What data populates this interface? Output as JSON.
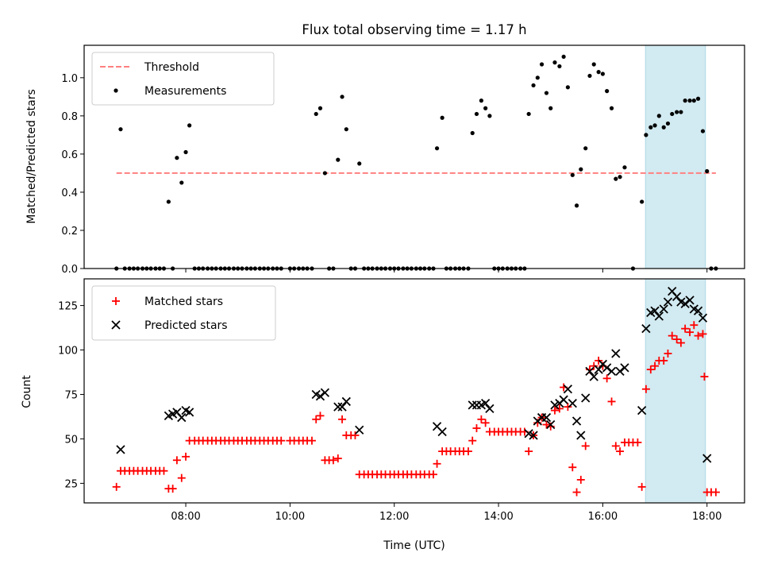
{
  "chart_data": {
    "title": "Flux total observing time = 1.17 h",
    "shade_span": [
      16.82,
      17.97
    ],
    "shade_color": "#add8e6",
    "xlim": [
      6.05,
      18.72
    ],
    "xlabel": "Time (UTC)",
    "xticks": [
      {
        "value": 8,
        "label": "08:00"
      },
      {
        "value": 10,
        "label": "10:00"
      },
      {
        "value": 12,
        "label": "12:00"
      },
      {
        "value": 14,
        "label": "14:00"
      },
      {
        "value": 16,
        "label": "16:00"
      },
      {
        "value": 18,
        "label": "18:00"
      }
    ],
    "top": {
      "type": "scatter",
      "ylabel": "Matched/Predicted stars",
      "ylim": [
        0,
        1.17
      ],
      "yticks": [
        {
          "value": 0.0,
          "label": "0.0"
        },
        {
          "value": 0.2,
          "label": "0.2"
        },
        {
          "value": 0.4,
          "label": "0.4"
        },
        {
          "value": 0.6,
          "label": "0.6"
        },
        {
          "value": 0.8,
          "label": "0.8"
        },
        {
          "value": 1.0,
          "label": "1.0"
        }
      ],
      "legend": [
        "Threshold",
        "Measurements"
      ],
      "legend_position": "top-left",
      "threshold": {
        "value": 0.5,
        "x_start": 6.67,
        "x_end": 18.17,
        "color": "#ff8080"
      },
      "measurements": [
        [
          6.67,
          0
        ],
        [
          6.75,
          0.73
        ],
        [
          6.83,
          0
        ],
        [
          6.92,
          0
        ],
        [
          7.0,
          0
        ],
        [
          7.08,
          0
        ],
        [
          7.17,
          0
        ],
        [
          7.25,
          0
        ],
        [
          7.33,
          0
        ],
        [
          7.42,
          0
        ],
        [
          7.5,
          0
        ],
        [
          7.58,
          0
        ],
        [
          7.67,
          0.35
        ],
        [
          7.75,
          0
        ],
        [
          7.83,
          0.58
        ],
        [
          7.92,
          0.45
        ],
        [
          8.0,
          0.61
        ],
        [
          8.07,
          0.75
        ],
        [
          8.17,
          0
        ],
        [
          8.25,
          0
        ],
        [
          8.33,
          0
        ],
        [
          8.42,
          0
        ],
        [
          8.5,
          0
        ],
        [
          8.58,
          0
        ],
        [
          8.67,
          0
        ],
        [
          8.75,
          0
        ],
        [
          8.83,
          0
        ],
        [
          8.92,
          0
        ],
        [
          9.0,
          0
        ],
        [
          9.08,
          0
        ],
        [
          9.17,
          0
        ],
        [
          9.25,
          0
        ],
        [
          9.33,
          0
        ],
        [
          9.42,
          0
        ],
        [
          9.5,
          0
        ],
        [
          9.58,
          0
        ],
        [
          9.67,
          0
        ],
        [
          9.75,
          0
        ],
        [
          9.83,
          0
        ],
        [
          10.0,
          0
        ],
        [
          10.08,
          0
        ],
        [
          10.17,
          0
        ],
        [
          10.25,
          0
        ],
        [
          10.33,
          0
        ],
        [
          10.42,
          0
        ],
        [
          10.5,
          0.81
        ],
        [
          10.58,
          0.84
        ],
        [
          10.67,
          0.5
        ],
        [
          10.75,
          0
        ],
        [
          10.83,
          0
        ],
        [
          10.92,
          0.57
        ],
        [
          11.0,
          0.9
        ],
        [
          11.08,
          0.73
        ],
        [
          11.17,
          0
        ],
        [
          11.25,
          0
        ],
        [
          11.33,
          0.55
        ],
        [
          11.42,
          0
        ],
        [
          11.5,
          0
        ],
        [
          11.58,
          0
        ],
        [
          11.67,
          0
        ],
        [
          11.75,
          0
        ],
        [
          11.83,
          0
        ],
        [
          11.92,
          0
        ],
        [
          12.0,
          0
        ],
        [
          12.08,
          0
        ],
        [
          12.17,
          0
        ],
        [
          12.25,
          0
        ],
        [
          12.33,
          0
        ],
        [
          12.42,
          0
        ],
        [
          12.5,
          0
        ],
        [
          12.58,
          0
        ],
        [
          12.67,
          0
        ],
        [
          12.75,
          0
        ],
        [
          12.82,
          0.63
        ],
        [
          12.92,
          0.79
        ],
        [
          13.0,
          0
        ],
        [
          13.08,
          0
        ],
        [
          13.17,
          0
        ],
        [
          13.25,
          0
        ],
        [
          13.33,
          0
        ],
        [
          13.42,
          0
        ],
        [
          13.5,
          0.71
        ],
        [
          13.58,
          0.81
        ],
        [
          13.67,
          0.88
        ],
        [
          13.75,
          0.84
        ],
        [
          13.83,
          0.8
        ],
        [
          13.92,
          0
        ],
        [
          14.0,
          0
        ],
        [
          14.08,
          0
        ],
        [
          14.17,
          0
        ],
        [
          14.25,
          0
        ],
        [
          14.33,
          0
        ],
        [
          14.42,
          0
        ],
        [
          14.5,
          0
        ],
        [
          14.58,
          0.81
        ],
        [
          14.67,
          0.96
        ],
        [
          14.75,
          1.0
        ],
        [
          14.83,
          1.07
        ],
        [
          14.92,
          0.92
        ],
        [
          15.0,
          0.84
        ],
        [
          15.08,
          1.08
        ],
        [
          15.17,
          1.06
        ],
        [
          15.25,
          1.11
        ],
        [
          15.33,
          0.95
        ],
        [
          15.42,
          0.49
        ],
        [
          15.5,
          0.33
        ],
        [
          15.58,
          0.52
        ],
        [
          15.67,
          0.63
        ],
        [
          15.75,
          1.01
        ],
        [
          15.83,
          1.07
        ],
        [
          15.92,
          1.03
        ],
        [
          16.0,
          1.02
        ],
        [
          16.08,
          0.93
        ],
        [
          16.17,
          0.84
        ],
        [
          16.25,
          0.47
        ],
        [
          16.33,
          0.48
        ],
        [
          16.42,
          0.53
        ],
        [
          16.58,
          0
        ],
        [
          16.75,
          0.35
        ],
        [
          16.83,
          0.7
        ],
        [
          16.92,
          0.74
        ],
        [
          17.0,
          0.75
        ],
        [
          17.08,
          0.8
        ],
        [
          17.17,
          0.74
        ],
        [
          17.25,
          0.76
        ],
        [
          17.33,
          0.81
        ],
        [
          17.42,
          0.82
        ],
        [
          17.5,
          0.82
        ],
        [
          17.58,
          0.88
        ],
        [
          17.67,
          0.88
        ],
        [
          17.75,
          0.88
        ],
        [
          17.83,
          0.89
        ],
        [
          17.92,
          0.72
        ],
        [
          18.0,
          0.51
        ],
        [
          18.08,
          0
        ],
        [
          18.17,
          0
        ]
      ]
    },
    "bottom": {
      "type": "scatter",
      "ylabel": "Count",
      "ylim": [
        14,
        140
      ],
      "yticks": [
        {
          "value": 25,
          "label": "25"
        },
        {
          "value": 50,
          "label": "50"
        },
        {
          "value": 75,
          "label": "75"
        },
        {
          "value": 100,
          "label": "100"
        },
        {
          "value": 125,
          "label": "125"
        }
      ],
      "legend": [
        "Matched stars",
        "Predicted stars"
      ],
      "legend_position": "top-left",
      "matched_color": "#ff0000",
      "predicted_color": "#000000",
      "matched": [
        [
          6.67,
          23
        ],
        [
          6.75,
          32
        ],
        [
          6.83,
          32
        ],
        [
          6.92,
          32
        ],
        [
          7.0,
          32
        ],
        [
          7.08,
          32
        ],
        [
          7.17,
          32
        ],
        [
          7.25,
          32
        ],
        [
          7.33,
          32
        ],
        [
          7.42,
          32
        ],
        [
          7.5,
          32
        ],
        [
          7.58,
          32
        ],
        [
          7.67,
          22
        ],
        [
          7.75,
          22
        ],
        [
          7.83,
          38
        ],
        [
          7.92,
          28
        ],
        [
          8.0,
          40
        ],
        [
          8.07,
          49
        ],
        [
          8.17,
          49
        ],
        [
          8.25,
          49
        ],
        [
          8.33,
          49
        ],
        [
          8.42,
          49
        ],
        [
          8.5,
          49
        ],
        [
          8.58,
          49
        ],
        [
          8.67,
          49
        ],
        [
          8.75,
          49
        ],
        [
          8.83,
          49
        ],
        [
          8.92,
          49
        ],
        [
          9.0,
          49
        ],
        [
          9.08,
          49
        ],
        [
          9.17,
          49
        ],
        [
          9.25,
          49
        ],
        [
          9.33,
          49
        ],
        [
          9.42,
          49
        ],
        [
          9.5,
          49
        ],
        [
          9.58,
          49
        ],
        [
          9.67,
          49
        ],
        [
          9.75,
          49
        ],
        [
          9.83,
          49
        ],
        [
          10.0,
          49
        ],
        [
          10.08,
          49
        ],
        [
          10.17,
          49
        ],
        [
          10.25,
          49
        ],
        [
          10.33,
          49
        ],
        [
          10.42,
          49
        ],
        [
          10.5,
          61
        ],
        [
          10.58,
          63
        ],
        [
          10.67,
          38
        ],
        [
          10.75,
          38
        ],
        [
          10.83,
          38
        ],
        [
          10.92,
          39
        ],
        [
          11.0,
          61
        ],
        [
          11.08,
          52
        ],
        [
          11.17,
          52
        ],
        [
          11.25,
          52
        ],
        [
          11.33,
          30
        ],
        [
          11.42,
          30
        ],
        [
          11.5,
          30
        ],
        [
          11.58,
          30
        ],
        [
          11.67,
          30
        ],
        [
          11.75,
          30
        ],
        [
          11.83,
          30
        ],
        [
          11.92,
          30
        ],
        [
          12.0,
          30
        ],
        [
          12.08,
          30
        ],
        [
          12.17,
          30
        ],
        [
          12.25,
          30
        ],
        [
          12.33,
          30
        ],
        [
          12.42,
          30
        ],
        [
          12.5,
          30
        ],
        [
          12.58,
          30
        ],
        [
          12.67,
          30
        ],
        [
          12.75,
          30
        ],
        [
          12.82,
          36
        ],
        [
          12.92,
          43
        ],
        [
          13.0,
          43
        ],
        [
          13.08,
          43
        ],
        [
          13.17,
          43
        ],
        [
          13.25,
          43
        ],
        [
          13.33,
          43
        ],
        [
          13.42,
          43
        ],
        [
          13.5,
          49
        ],
        [
          13.58,
          56
        ],
        [
          13.67,
          61
        ],
        [
          13.75,
          59
        ],
        [
          13.83,
          54
        ],
        [
          13.92,
          54
        ],
        [
          14.0,
          54
        ],
        [
          14.08,
          54
        ],
        [
          14.17,
          54
        ],
        [
          14.25,
          54
        ],
        [
          14.33,
          54
        ],
        [
          14.42,
          54
        ],
        [
          14.5,
          54
        ],
        [
          14.58,
          43
        ],
        [
          14.67,
          52
        ],
        [
          14.75,
          59
        ],
        [
          14.83,
          62
        ],
        [
          14.92,
          58
        ],
        [
          15.0,
          57
        ],
        [
          15.08,
          66
        ],
        [
          15.17,
          67
        ],
        [
          15.25,
          79
        ],
        [
          15.33,
          68
        ],
        [
          15.42,
          34
        ],
        [
          15.5,
          20
        ],
        [
          15.58,
          27
        ],
        [
          15.67,
          46
        ],
        [
          15.75,
          89
        ],
        [
          15.83,
          91
        ],
        [
          15.92,
          94
        ],
        [
          16.0,
          91
        ],
        [
          16.08,
          84
        ],
        [
          16.17,
          71
        ],
        [
          16.25,
          46
        ],
        [
          16.33,
          43
        ],
        [
          16.42,
          48
        ],
        [
          16.5,
          48
        ],
        [
          16.58,
          48
        ],
        [
          16.67,
          48
        ],
        [
          16.75,
          23
        ],
        [
          16.83,
          78
        ],
        [
          16.92,
          89
        ],
        [
          17.0,
          91
        ],
        [
          17.08,
          94
        ],
        [
          17.17,
          94
        ],
        [
          17.25,
          98
        ],
        [
          17.33,
          108
        ],
        [
          17.42,
          106
        ],
        [
          17.5,
          104
        ],
        [
          17.58,
          112
        ],
        [
          17.67,
          110
        ],
        [
          17.75,
          114
        ],
        [
          17.83,
          108
        ],
        [
          17.92,
          109
        ],
        [
          17.95,
          85
        ],
        [
          18.0,
          20
        ],
        [
          18.08,
          20
        ],
        [
          18.17,
          20
        ]
      ],
      "predicted": [
        [
          6.75,
          44
        ],
        [
          7.67,
          63
        ],
        [
          7.75,
          64
        ],
        [
          7.83,
          65
        ],
        [
          7.92,
          62
        ],
        [
          8.0,
          66
        ],
        [
          8.07,
          65
        ],
        [
          10.5,
          75
        ],
        [
          10.58,
          74
        ],
        [
          10.67,
          76
        ],
        [
          10.92,
          68
        ],
        [
          11.0,
          68
        ],
        [
          11.08,
          71
        ],
        [
          11.33,
          55
        ],
        [
          12.82,
          57
        ],
        [
          12.92,
          54
        ],
        [
          13.5,
          69
        ],
        [
          13.58,
          69
        ],
        [
          13.67,
          69
        ],
        [
          13.75,
          70
        ],
        [
          13.83,
          67
        ],
        [
          14.58,
          53
        ],
        [
          14.67,
          52
        ],
        [
          14.75,
          60
        ],
        [
          14.83,
          62
        ],
        [
          14.92,
          62
        ],
        [
          15.0,
          58
        ],
        [
          15.08,
          69
        ],
        [
          15.17,
          70
        ],
        [
          15.25,
          72
        ],
        [
          15.33,
          78
        ],
        [
          15.42,
          70
        ],
        [
          15.5,
          60
        ],
        [
          15.58,
          52
        ],
        [
          15.67,
          73
        ],
        [
          15.75,
          88
        ],
        [
          15.83,
          85
        ],
        [
          15.92,
          89
        ],
        [
          16.0,
          92
        ],
        [
          16.08,
          90
        ],
        [
          16.17,
          88
        ],
        [
          16.25,
          98
        ],
        [
          16.33,
          88
        ],
        [
          16.42,
          90
        ],
        [
          16.75,
          66
        ],
        [
          16.83,
          112
        ],
        [
          16.92,
          121
        ],
        [
          17.0,
          122
        ],
        [
          17.08,
          119
        ],
        [
          17.17,
          123
        ],
        [
          17.25,
          127
        ],
        [
          17.33,
          133
        ],
        [
          17.42,
          130
        ],
        [
          17.5,
          127
        ],
        [
          17.58,
          126
        ],
        [
          17.67,
          128
        ],
        [
          17.75,
          123
        ],
        [
          17.83,
          122
        ],
        [
          17.92,
          118
        ],
        [
          18.0,
          39
        ]
      ]
    }
  }
}
